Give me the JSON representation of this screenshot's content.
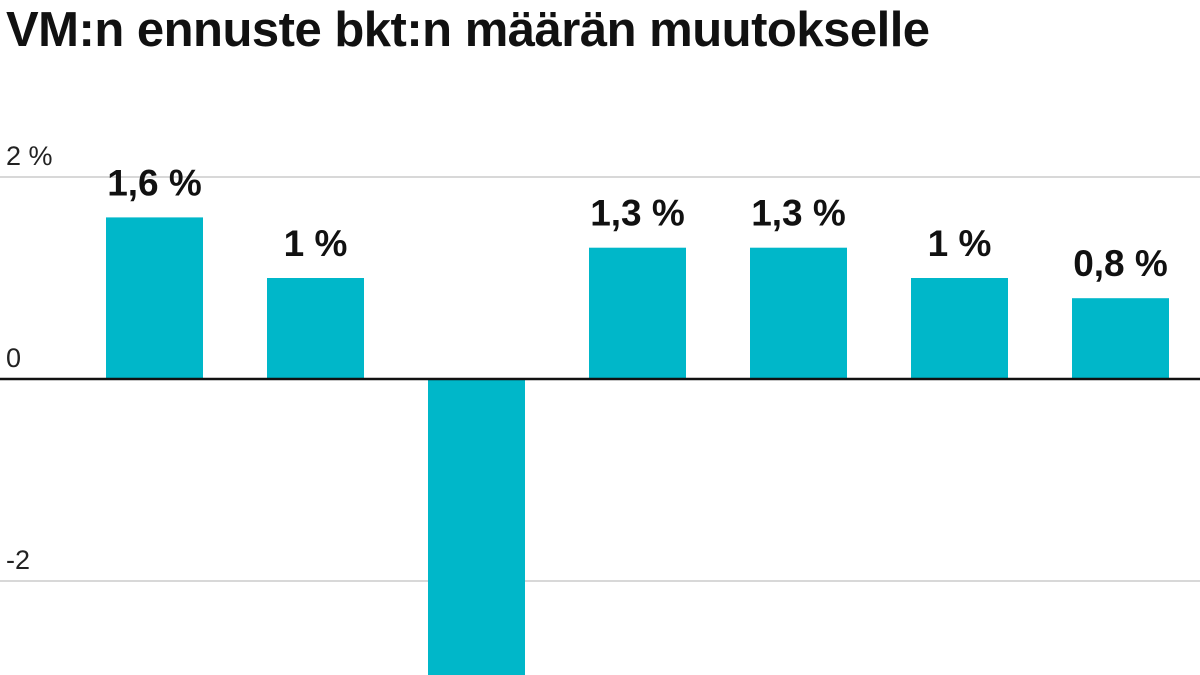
{
  "chart_data": {
    "type": "bar",
    "title": "VM:n ennuste bkt:n määrän muutokselle",
    "values": [
      1.6,
      1.0,
      -3.0,
      1.3,
      1.3,
      1.0,
      0.8
    ],
    "data_labels": [
      "1,6 %",
      "1 %",
      "",
      "1,3 %",
      "1,3 %",
      "1 %",
      "0,8 %"
    ],
    "y_ticks": [
      {
        "value": 2,
        "label": "2 %"
      },
      {
        "value": 0,
        "label": "0"
      },
      {
        "value": -2,
        "label": "-2"
      }
    ],
    "ylim": [
      -3,
      2.2
    ],
    "grid": true,
    "legend": "none",
    "bar_color": "#00b7c9",
    "grid_color": "#cccccc",
    "zero_line_color": "#111111"
  }
}
